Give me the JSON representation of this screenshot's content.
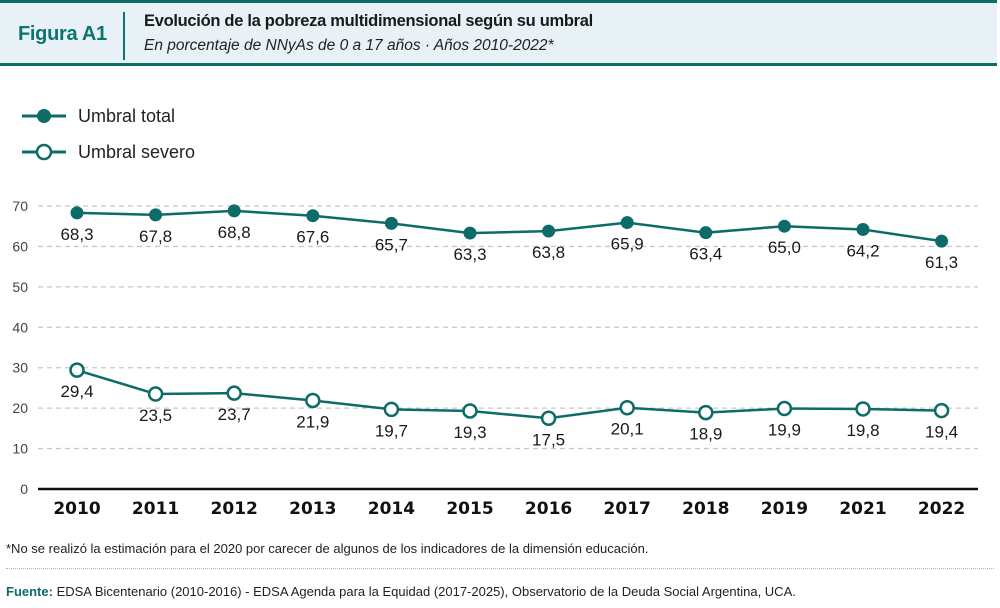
{
  "header": {
    "figure_label": "Figura A1",
    "title": "Evolución de la pobreza multidimensional según su umbral",
    "subtitle": "En porcentaje de NNyAs de 0 a 17 años · Años 2010-2022*"
  },
  "colors": {
    "accent": "#0d6b68",
    "header_bg": "#e8f2f6",
    "grid": "#c8c8c8",
    "axis": "#111111"
  },
  "chart_data": {
    "type": "line",
    "title": "Evolución de la pobreza multidimensional según su umbral",
    "subtitle": "En porcentaje de NNyAs de 0 a 17 años · Años 2010-2022*",
    "xlabel": "",
    "ylabel": "",
    "categories": [
      "2010",
      "2011",
      "2012",
      "2013",
      "2014",
      "2015",
      "2016",
      "2017",
      "2018",
      "2019",
      "2021",
      "2022"
    ],
    "yticks": [
      "0",
      "10",
      "20",
      "30",
      "40",
      "50",
      "60",
      "70"
    ],
    "ylim": [
      0,
      70
    ],
    "grid": true,
    "legend_position": "top-left",
    "series": [
      {
        "name": "Umbral total",
        "marker": "filled-circle",
        "values": [
          68.3,
          67.8,
          68.8,
          67.6,
          65.7,
          63.3,
          63.8,
          65.9,
          63.4,
          65.0,
          64.2,
          61.3
        ],
        "labels": [
          "68,3",
          "67,8",
          "68,8",
          "67,6",
          "65,7",
          "63,3",
          "63,8",
          "65,9",
          "63,4",
          "65,0",
          "64,2",
          "61,3"
        ]
      },
      {
        "name": "Umbral severo",
        "marker": "hollow-circle",
        "values": [
          29.4,
          23.5,
          23.7,
          21.9,
          19.7,
          19.3,
          17.5,
          20.1,
          18.9,
          19.9,
          19.8,
          19.4
        ],
        "labels": [
          "29,4",
          "23,5",
          "23,7",
          "21,9",
          "19,7",
          "19,3",
          "17,5",
          "20,1",
          "18,9",
          "19,9",
          "19,8",
          "19,4"
        ]
      }
    ]
  },
  "legend": [
    {
      "label": "Umbral total"
    },
    {
      "label": "Umbral severo"
    }
  ],
  "footer": {
    "note": "*No se realizó la estimación para el 2020 por carecer de algunos de los indicadores de la dimensión educación.",
    "source_label": "Fuente:",
    "source_text": " EDSA Bicentenario (2010-2016) - EDSA Agenda para la Equidad (2017-2025), Observatorio de la Deuda Social Argentina, UCA."
  }
}
